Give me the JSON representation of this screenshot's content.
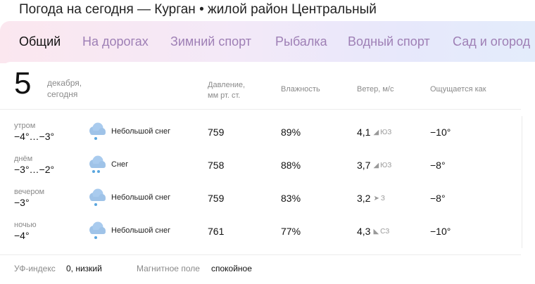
{
  "page_title": "Погода на сегодня — Курган • жилой район Центральный",
  "tabs": [
    {
      "label": "Общий"
    },
    {
      "label": "На дорогах"
    },
    {
      "label": "Зимний спорт"
    },
    {
      "label": "Рыбалка"
    },
    {
      "label": "Водный спорт"
    },
    {
      "label": "Сад и огород"
    }
  ],
  "date": {
    "day": "5",
    "month": "декабря,",
    "sub": "сегодня"
  },
  "headers": {
    "pressure_1": "Давление,",
    "pressure_2": "мм рт. ст.",
    "humidity": "Влажность",
    "wind": "Ветер, м/с",
    "feels": "Ощущается как"
  },
  "rows": [
    {
      "period": "утром",
      "temp": "−4°…−3°",
      "icon": "light-snow-icon",
      "condition": "Небольшой снег",
      "pressure": "759",
      "humidity": "89%",
      "wind": "4,1",
      "wind_arrow": "◢",
      "wind_dir": "ЮЗ",
      "feels": "−10°"
    },
    {
      "period": "днём",
      "temp": "−3°…−2°",
      "icon": "snow-icon",
      "condition": "Снег",
      "pressure": "758",
      "humidity": "88%",
      "wind": "3,7",
      "wind_arrow": "◢",
      "wind_dir": "ЮЗ",
      "feels": "−8°"
    },
    {
      "period": "вечером",
      "temp": "−3°",
      "icon": "light-snow-icon",
      "condition": "Небольшой снег",
      "pressure": "759",
      "humidity": "83%",
      "wind": "3,2",
      "wind_arrow": "➤",
      "wind_dir": "З",
      "feels": "−8°"
    },
    {
      "period": "ночью",
      "temp": "−4°",
      "icon": "light-snow-icon",
      "condition": "Небольшой снег",
      "pressure": "761",
      "humidity": "77%",
      "wind": "4,3",
      "wind_arrow": "◣",
      "wind_dir": "СЗ",
      "feels": "−10°"
    }
  ],
  "footer": {
    "uv_label": "УФ-индекс",
    "uv_value": "0, низкий",
    "mag_label": "Магнитное поле",
    "mag_value": "спокойное"
  },
  "colors": {
    "tab_active": "#111111",
    "tab_inactive": "#9e7fb5",
    "cloud": "#9fc3e8",
    "snow": "#5aa6de"
  }
}
